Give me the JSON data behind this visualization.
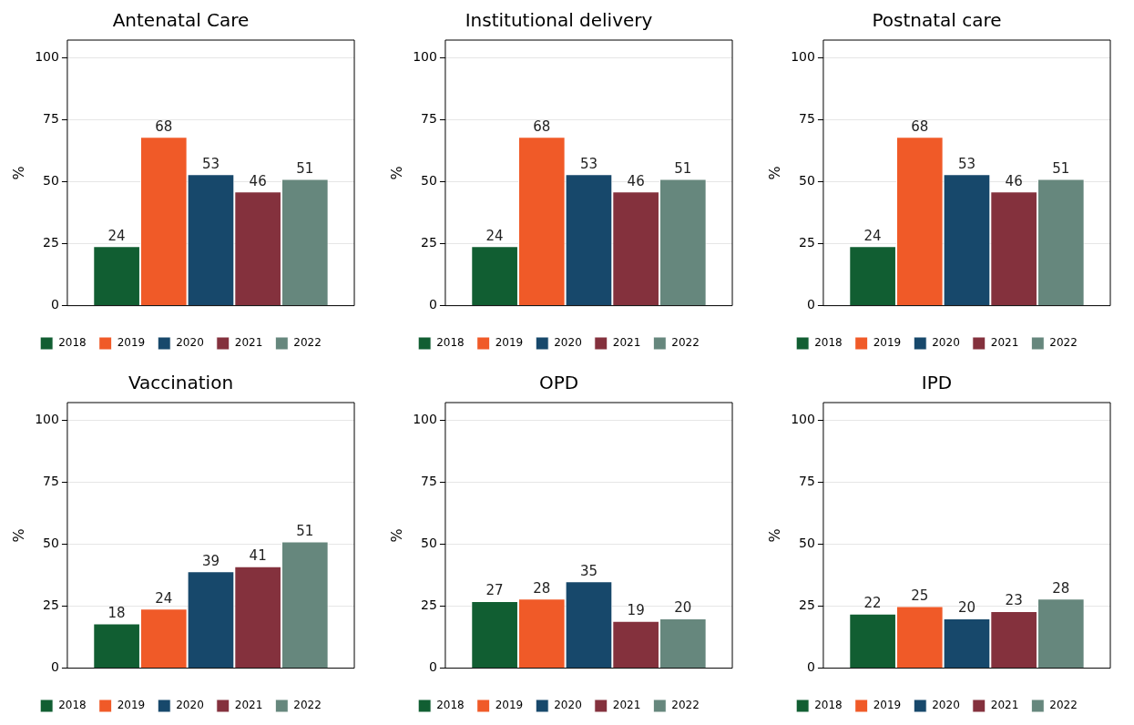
{
  "chart_data": [
    {
      "type": "bar",
      "title": "Antenatal Care",
      "ylabel": "%",
      "categories": [
        null
      ],
      "ylim": [
        0,
        107
      ],
      "yticks": [
        0,
        25,
        50,
        75,
        100
      ],
      "grid": "y",
      "legend": "bottom",
      "data_labels": true,
      "series": [
        {
          "name": "2018",
          "color": "#115e32",
          "values": [
            24
          ]
        },
        {
          "name": "2019",
          "color": "#f05a28",
          "values": [
            68
          ]
        },
        {
          "name": "2020",
          "color": "#17486b",
          "values": [
            53
          ]
        },
        {
          "name": "2021",
          "color": "#84313d",
          "values": [
            46
          ]
        },
        {
          "name": "2022",
          "color": "#66877d",
          "values": [
            51
          ]
        }
      ]
    },
    {
      "type": "bar",
      "title": "Institutional delivery",
      "ylabel": "%",
      "categories": [
        null
      ],
      "ylim": [
        0,
        107
      ],
      "yticks": [
        0,
        25,
        50,
        75,
        100
      ],
      "grid": "y",
      "legend": "bottom",
      "data_labels": true,
      "series": [
        {
          "name": "2018",
          "color": "#115e32",
          "values": [
            24
          ]
        },
        {
          "name": "2019",
          "color": "#f05a28",
          "values": [
            68
          ]
        },
        {
          "name": "2020",
          "color": "#17486b",
          "values": [
            53
          ]
        },
        {
          "name": "2021",
          "color": "#84313d",
          "values": [
            46
          ]
        },
        {
          "name": "2022",
          "color": "#66877d",
          "values": [
            51
          ]
        }
      ]
    },
    {
      "type": "bar",
      "title": "Postnatal care",
      "ylabel": "%",
      "categories": [
        null
      ],
      "ylim": [
        0,
        107
      ],
      "yticks": [
        0,
        25,
        50,
        75,
        100
      ],
      "grid": "y",
      "legend": "bottom",
      "data_labels": true,
      "series": [
        {
          "name": "2018",
          "color": "#115e32",
          "values": [
            24
          ]
        },
        {
          "name": "2019",
          "color": "#f05a28",
          "values": [
            68
          ]
        },
        {
          "name": "2020",
          "color": "#17486b",
          "values": [
            53
          ]
        },
        {
          "name": "2021",
          "color": "#84313d",
          "values": [
            46
          ]
        },
        {
          "name": "2022",
          "color": "#66877d",
          "values": [
            51
          ]
        }
      ]
    },
    {
      "type": "bar",
      "title": "Vaccination",
      "ylabel": "%",
      "categories": [
        null
      ],
      "ylim": [
        0,
        107
      ],
      "yticks": [
        0,
        25,
        50,
        75,
        100
      ],
      "grid": "y",
      "legend": "bottom",
      "data_labels": true,
      "series": [
        {
          "name": "2018",
          "color": "#115e32",
          "values": [
            18
          ]
        },
        {
          "name": "2019",
          "color": "#f05a28",
          "values": [
            24
          ]
        },
        {
          "name": "2020",
          "color": "#17486b",
          "values": [
            39
          ]
        },
        {
          "name": "2021",
          "color": "#84313d",
          "values": [
            41
          ]
        },
        {
          "name": "2022",
          "color": "#66877d",
          "values": [
            51
          ]
        }
      ]
    },
    {
      "type": "bar",
      "title": "OPD",
      "ylabel": "%",
      "categories": [
        null
      ],
      "ylim": [
        0,
        107
      ],
      "yticks": [
        0,
        25,
        50,
        75,
        100
      ],
      "grid": "y",
      "legend": "bottom",
      "data_labels": true,
      "series": [
        {
          "name": "2018",
          "color": "#115e32",
          "values": [
            27
          ]
        },
        {
          "name": "2019",
          "color": "#f05a28",
          "values": [
            28
          ]
        },
        {
          "name": "2020",
          "color": "#17486b",
          "values": [
            35
          ]
        },
        {
          "name": "2021",
          "color": "#84313d",
          "values": [
            19
          ]
        },
        {
          "name": "2022",
          "color": "#66877d",
          "values": [
            20
          ]
        }
      ]
    },
    {
      "type": "bar",
      "title": "IPD",
      "ylabel": "%",
      "categories": [
        null
      ],
      "ylim": [
        0,
        107
      ],
      "yticks": [
        0,
        25,
        50,
        75,
        100
      ],
      "grid": "y",
      "legend": "bottom",
      "data_labels": true,
      "series": [
        {
          "name": "2018",
          "color": "#115e32",
          "values": [
            22
          ]
        },
        {
          "name": "2019",
          "color": "#f05a28",
          "values": [
            25
          ]
        },
        {
          "name": "2020",
          "color": "#17486b",
          "values": [
            20
          ]
        },
        {
          "name": "2021",
          "color": "#84313d",
          "values": [
            23
          ]
        },
        {
          "name": "2022",
          "color": "#66877d",
          "values": [
            28
          ]
        }
      ]
    }
  ]
}
